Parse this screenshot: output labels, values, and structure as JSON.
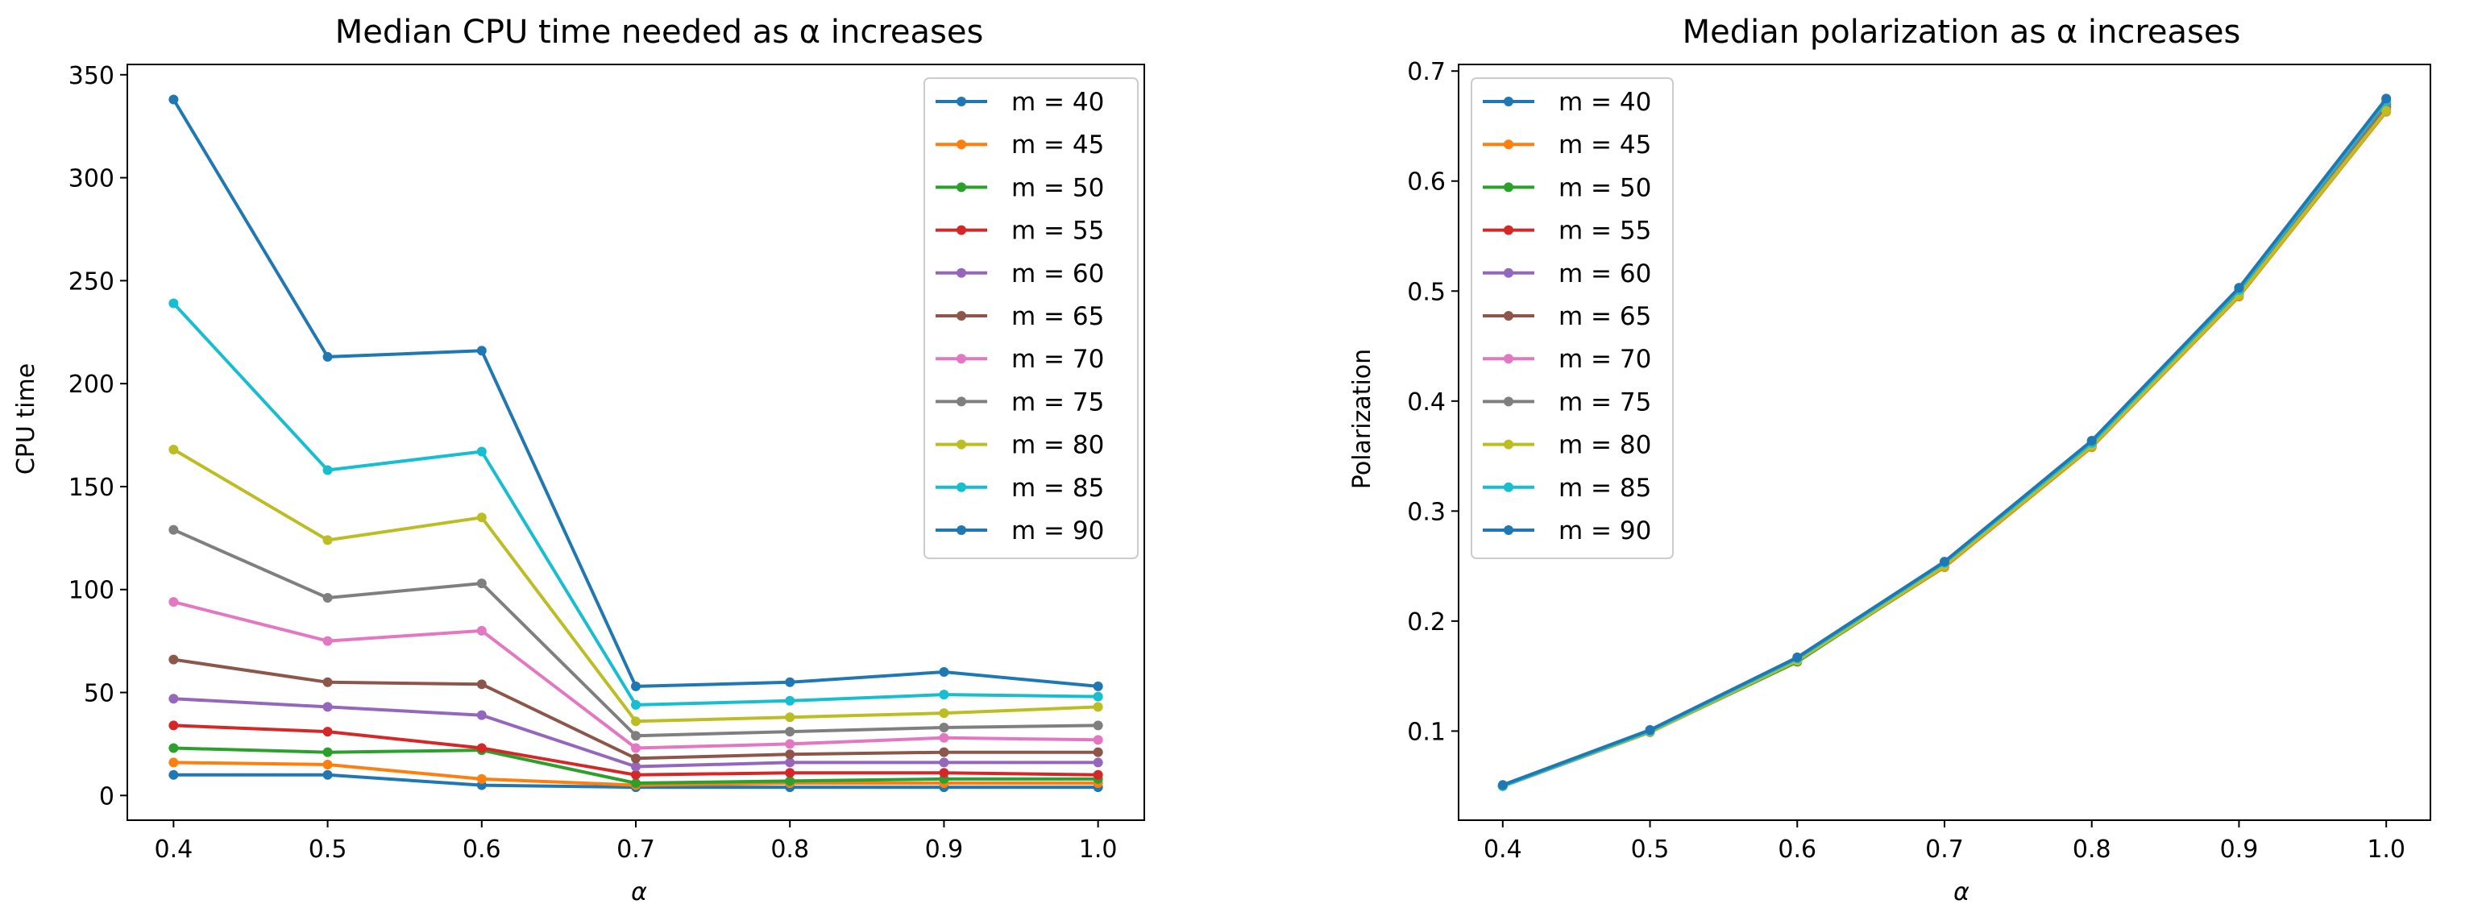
{
  "chart_data": [
    {
      "type": "line",
      "title": "Median CPU time needed as α increases",
      "xlabel": "α",
      "ylabel": "CPU time",
      "x": [
        0.4,
        0.5,
        0.6,
        0.7,
        0.8,
        0.9,
        1.0
      ],
      "xticks": [
        "0.4",
        "0.5",
        "0.6",
        "0.7",
        "0.8",
        "0.9",
        "1.0"
      ],
      "yticks": [
        "0",
        "50",
        "100",
        "150",
        "200",
        "250",
        "300",
        "350"
      ],
      "xlim": [
        0.37,
        1.03
      ],
      "ylim": [
        -12,
        355
      ],
      "legend_position": "top-right",
      "series": [
        {
          "name": "m = 40",
          "color": "#1f77b4",
          "values": [
            10,
            10,
            5,
            4,
            4,
            4,
            4
          ]
        },
        {
          "name": "m = 45",
          "color": "#ff7f0e",
          "values": [
            16,
            15,
            8,
            5,
            6,
            6,
            6
          ]
        },
        {
          "name": "m = 50",
          "color": "#2ca02c",
          "values": [
            23,
            21,
            22,
            6,
            7,
            8,
            8
          ]
        },
        {
          "name": "m = 55",
          "color": "#d62728",
          "values": [
            34,
            31,
            23,
            10,
            11,
            11,
            10
          ]
        },
        {
          "name": "m = 60",
          "color": "#9467bd",
          "values": [
            47,
            43,
            39,
            14,
            16,
            16,
            16
          ]
        },
        {
          "name": "m = 65",
          "color": "#8c564b",
          "values": [
            66,
            55,
            54,
            18,
            20,
            21,
            21
          ]
        },
        {
          "name": "m = 70",
          "color": "#e377c2",
          "values": [
            94,
            75,
            80,
            23,
            25,
            28,
            27
          ]
        },
        {
          "name": "m = 75",
          "color": "#7f7f7f",
          "values": [
            129,
            96,
            103,
            29,
            31,
            33,
            34
          ]
        },
        {
          "name": "m = 80",
          "color": "#bcbd22",
          "values": [
            168,
            124,
            135,
            36,
            38,
            40,
            43
          ]
        },
        {
          "name": "m = 85",
          "color": "#17becf",
          "values": [
            239,
            158,
            167,
            44,
            46,
            49,
            48
          ]
        },
        {
          "name": "m = 90",
          "color": "#1f77b4",
          "values": [
            338,
            213,
            216,
            53,
            55,
            60,
            53
          ]
        }
      ]
    },
    {
      "type": "line",
      "title": "Median polarization as α increases",
      "xlabel": "α",
      "ylabel": "Polarization",
      "x": [
        0.4,
        0.5,
        0.6,
        0.7,
        0.8,
        0.9,
        1.0
      ],
      "xticks": [
        "0.4",
        "0.5",
        "0.6",
        "0.7",
        "0.8",
        "0.9",
        "1.0"
      ],
      "yticks": [
        "0.1",
        "0.2",
        "0.3",
        "0.4",
        "0.5",
        "0.6",
        "0.7"
      ],
      "xlim": [
        0.37,
        1.03
      ],
      "ylim": [
        0.019,
        0.706
      ],
      "legend_position": "top-left",
      "series": [
        {
          "name": "m = 40",
          "color": "#1f77b4",
          "values": [
            0.05,
            0.1,
            0.166,
            0.253,
            0.362,
            0.5,
            0.672
          ]
        },
        {
          "name": "m = 45",
          "color": "#ff7f0e",
          "values": [
            0.05,
            0.099,
            0.164,
            0.249,
            0.358,
            0.495,
            0.663
          ]
        },
        {
          "name": "m = 50",
          "color": "#2ca02c",
          "values": [
            0.05,
            0.099,
            0.163,
            0.25,
            0.359,
            0.496,
            0.665
          ]
        },
        {
          "name": "m = 55",
          "color": "#d62728",
          "values": [
            0.05,
            0.099,
            0.164,
            0.25,
            0.359,
            0.497,
            0.667
          ]
        },
        {
          "name": "m = 60",
          "color": "#9467bd",
          "values": [
            0.05,
            0.099,
            0.164,
            0.251,
            0.36,
            0.498,
            0.668
          ]
        },
        {
          "name": "m = 65",
          "color": "#8c564b",
          "values": [
            0.05,
            0.099,
            0.164,
            0.251,
            0.36,
            0.498,
            0.669
          ]
        },
        {
          "name": "m = 70",
          "color": "#e377c2",
          "values": [
            0.05,
            0.1,
            0.165,
            0.252,
            0.361,
            0.499,
            0.67
          ]
        },
        {
          "name": "m = 75",
          "color": "#7f7f7f",
          "values": [
            0.05,
            0.1,
            0.165,
            0.252,
            0.361,
            0.499,
            0.67
          ]
        },
        {
          "name": "m = 80",
          "color": "#bcbd22",
          "values": [
            0.05,
            0.099,
            0.164,
            0.25,
            0.359,
            0.496,
            0.664
          ]
        },
        {
          "name": "m = 85",
          "color": "#17becf",
          "values": [
            0.05,
            0.1,
            0.166,
            0.253,
            0.362,
            0.501,
            0.673
          ]
        },
        {
          "name": "m = 90",
          "color": "#1f77b4",
          "values": [
            0.051,
            0.101,
            0.167,
            0.254,
            0.364,
            0.503,
            0.675
          ]
        }
      ]
    }
  ]
}
